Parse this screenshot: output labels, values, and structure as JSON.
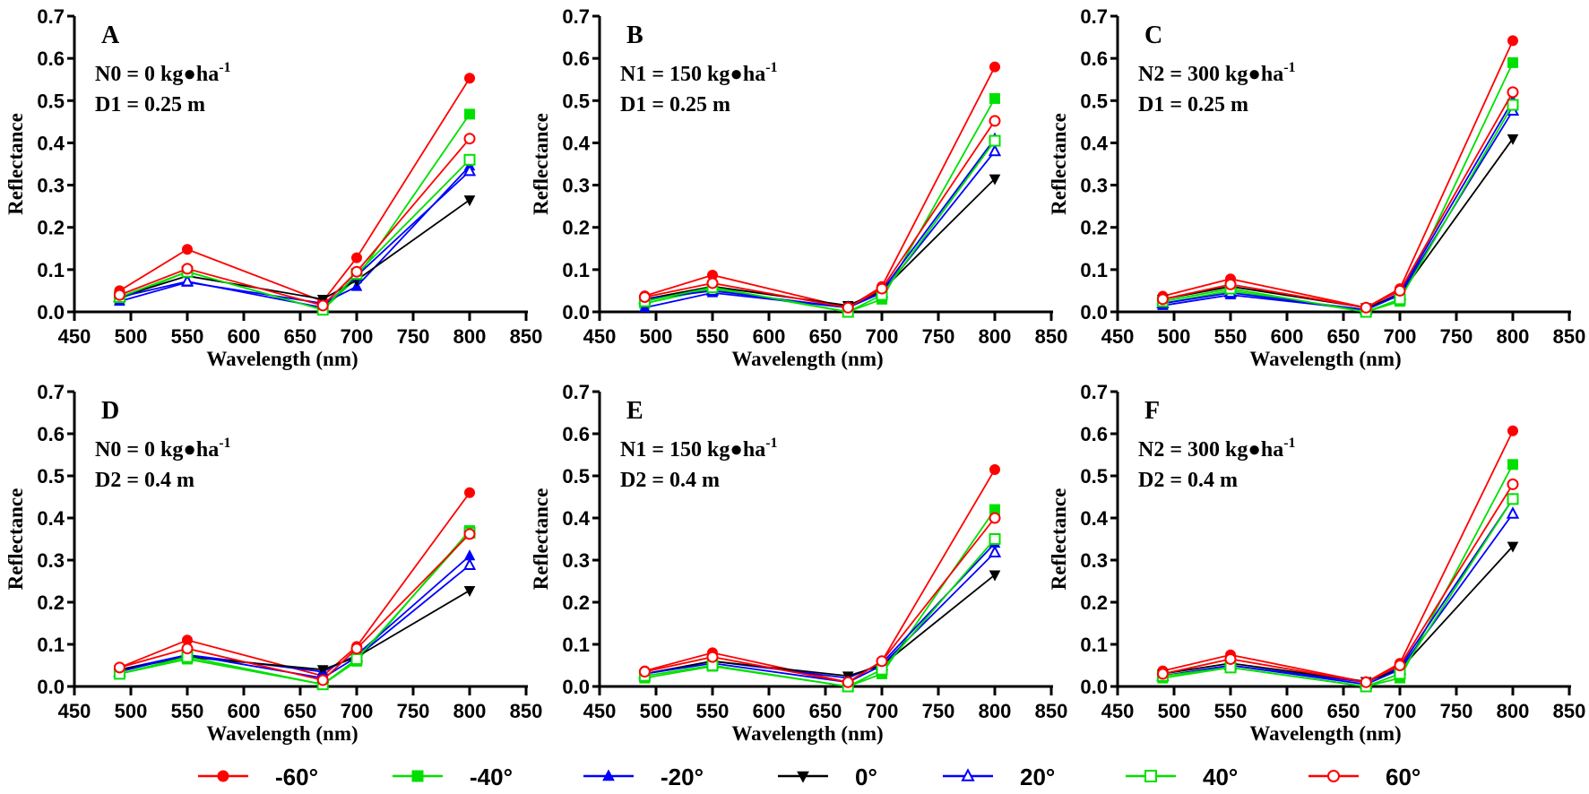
{
  "chart_data": {
    "type": "line",
    "x": [
      490,
      550,
      670,
      700,
      800
    ],
    "xlabel": "Wavelength (nm)",
    "ylabel": "Reflectance",
    "xlim": [
      450,
      850
    ],
    "ylim": [
      0,
      0.7
    ],
    "xticks": [
      "450",
      "500",
      "550",
      "600",
      "650",
      "700",
      "750",
      "800",
      "850"
    ],
    "yticks": [
      "0.0",
      "0.1",
      "0.2",
      "0.3",
      "0.4",
      "0.5",
      "0.6",
      "0.7"
    ],
    "grid": false,
    "legend_position": "bottom",
    "legend": [
      {
        "name": "-60°",
        "color": "#ff0000",
        "marker": "filled-circle"
      },
      {
        "name": "-40°",
        "color": "#00e000",
        "marker": "filled-square"
      },
      {
        "name": "-20°",
        "color": "#0000ff",
        "marker": "filled-triangle-up"
      },
      {
        "name": "0°",
        "color": "#000000",
        "marker": "filled-triangle-down"
      },
      {
        "name": "20°",
        "color": "#0000ff",
        "marker": "open-triangle-up"
      },
      {
        "name": "40°",
        "color": "#00e000",
        "marker": "open-square"
      },
      {
        "name": "60°",
        "color": "#ff0000",
        "marker": "open-circle"
      }
    ],
    "panels": [
      {
        "letter": "A",
        "line1": "N0 = 0 kg●ha",
        "sup": "-1",
        "line2": "D1 = 0.25 m",
        "series": [
          [
            0.05,
            0.148,
            0.025,
            0.128,
            0.553
          ],
          [
            0.03,
            0.095,
            0.005,
            0.08,
            0.468
          ],
          [
            0.025,
            0.07,
            0.02,
            0.06,
            0.345
          ],
          [
            0.035,
            0.085,
            0.03,
            0.075,
            0.265
          ],
          [
            0.035,
            0.072,
            0.01,
            0.085,
            0.333
          ],
          [
            0.035,
            0.095,
            0.005,
            0.09,
            0.36
          ],
          [
            0.04,
            0.102,
            0.015,
            0.095,
            0.41
          ]
        ]
      },
      {
        "letter": "B",
        "line1": "N1 = 150 kg●ha",
        "sup": "-1",
        "line2": "D1 = 0.25 m",
        "series": [
          [
            0.038,
            0.087,
            0.01,
            0.06,
            0.58
          ],
          [
            0.02,
            0.055,
            0.0,
            0.03,
            0.505
          ],
          [
            0.01,
            0.045,
            0.01,
            0.05,
            0.41
          ],
          [
            0.03,
            0.06,
            0.015,
            0.05,
            0.315
          ],
          [
            0.03,
            0.05,
            0.01,
            0.045,
            0.38
          ],
          [
            0.025,
            0.058,
            0.0,
            0.04,
            0.405
          ],
          [
            0.035,
            0.068,
            0.01,
            0.055,
            0.452
          ]
        ]
      },
      {
        "letter": "C",
        "line1": "N2 = 300 kg●ha",
        "sup": "-1",
        "line2": "D1 = 0.25 m",
        "series": [
          [
            0.037,
            0.078,
            0.01,
            0.055,
            0.642
          ],
          [
            0.02,
            0.05,
            0.0,
            0.025,
            0.59
          ],
          [
            0.015,
            0.04,
            0.005,
            0.045,
            0.5
          ],
          [
            0.03,
            0.06,
            0.01,
            0.04,
            0.41
          ],
          [
            0.02,
            0.045,
            0.005,
            0.04,
            0.476
          ],
          [
            0.025,
            0.055,
            0.0,
            0.03,
            0.49
          ],
          [
            0.03,
            0.065,
            0.01,
            0.05,
            0.52
          ]
        ]
      },
      {
        "letter": "D",
        "line1": "N0 = 0 kg●ha",
        "sup": "-1",
        "line2": "D2 = 0.4 m",
        "series": [
          [
            0.045,
            0.11,
            0.025,
            0.095,
            0.46
          ],
          [
            0.03,
            0.065,
            0.005,
            0.06,
            0.37
          ],
          [
            0.04,
            0.075,
            0.035,
            0.075,
            0.31
          ],
          [
            0.04,
            0.07,
            0.04,
            0.07,
            0.228
          ],
          [
            0.035,
            0.075,
            0.02,
            0.07,
            0.288
          ],
          [
            0.03,
            0.07,
            0.005,
            0.065,
            0.365
          ],
          [
            0.045,
            0.09,
            0.015,
            0.09,
            0.362
          ]
        ]
      },
      {
        "letter": "E",
        "line1": "N1 = 150 kg●ha",
        "sup": "-1",
        "line2": "D2 = 0.4 m",
        "series": [
          [
            0.037,
            0.08,
            0.01,
            0.06,
            0.515
          ],
          [
            0.02,
            0.048,
            0.0,
            0.03,
            0.42
          ],
          [
            0.03,
            0.06,
            0.02,
            0.055,
            0.34
          ],
          [
            0.03,
            0.06,
            0.025,
            0.05,
            0.265
          ],
          [
            0.03,
            0.055,
            0.01,
            0.05,
            0.318
          ],
          [
            0.025,
            0.05,
            0.0,
            0.04,
            0.35
          ],
          [
            0.035,
            0.07,
            0.01,
            0.06,
            0.4
          ]
        ]
      },
      {
        "letter": "F",
        "line1": "N2 = 300 kg●ha",
        "sup": "-1",
        "line2": "D2 = 0.4 m",
        "series": [
          [
            0.037,
            0.075,
            0.01,
            0.055,
            0.607
          ],
          [
            0.02,
            0.045,
            0.0,
            0.02,
            0.527
          ],
          [
            0.025,
            0.05,
            0.01,
            0.045,
            0.445
          ],
          [
            0.03,
            0.055,
            0.012,
            0.04,
            0.333
          ],
          [
            0.025,
            0.05,
            0.005,
            0.04,
            0.41
          ],
          [
            0.025,
            0.045,
            0.0,
            0.03,
            0.445
          ],
          [
            0.03,
            0.065,
            0.01,
            0.05,
            0.48
          ]
        ]
      }
    ]
  }
}
